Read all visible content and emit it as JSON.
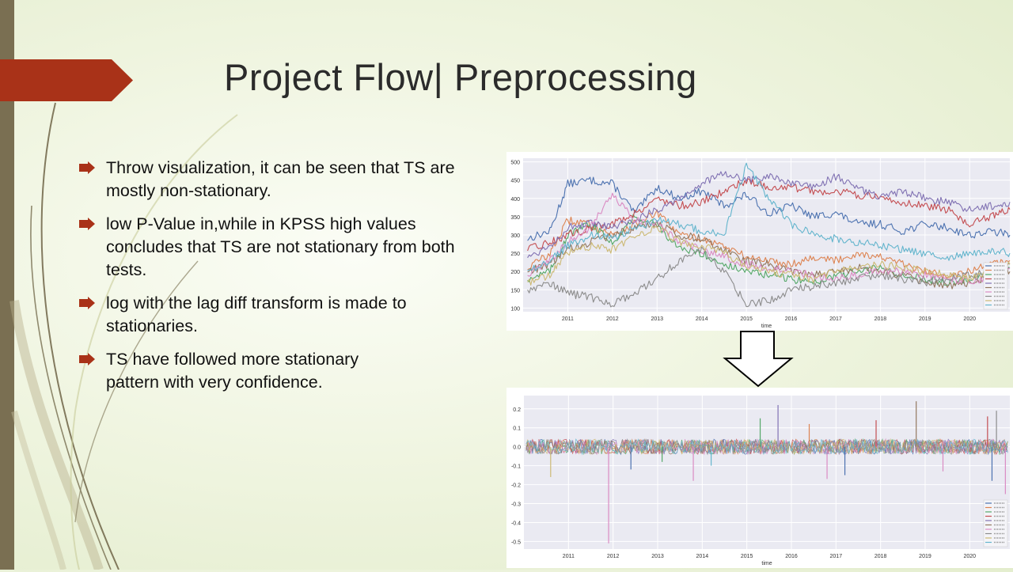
{
  "slide": {
    "title": "Project Flow| Preprocessing",
    "accent_color": "#a93218",
    "bullets": [
      {
        "lines": [
          "Throw visualization, it can be seen that TS are",
          "mostly non-stationary."
        ]
      },
      {
        "lines": [
          " low P-Value in,while in KPSS high values",
          "concludes that TS are not stationary from both",
          "tests."
        ]
      },
      {
        "lines": [
          "log with the lag diff transform is made to",
          "stationaries."
        ]
      },
      {
        "lines": [
          " TS have followed more stationary",
          "pattern  with very confidence."
        ]
      }
    ]
  },
  "chart_data": [
    {
      "type": "line",
      "xlabel": "time",
      "ylabel": "",
      "x_ticks": [
        "2011",
        "2012",
        "2013",
        "2014",
        "2015",
        "2016",
        "2017",
        "2018",
        "2019",
        "2020"
      ],
      "y_ticks": [
        100,
        150,
        200,
        250,
        300,
        350,
        400,
        450,
        500
      ],
      "xlim": [
        2010.0,
        2020.9
      ],
      "ylim": [
        90,
        510
      ],
      "grid": true,
      "legend": "bottom-right",
      "series": [
        {
          "color": "#4c72b0",
          "x": [
            2010.1,
            2010.6,
            2011.0,
            2011.5,
            2012.0,
            2012.5,
            2013.0,
            2013.5,
            2014.0,
            2014.5,
            2015.0,
            2015.5,
            2016.0,
            2016.5,
            2017.0,
            2017.5,
            2018.0,
            2018.5,
            2019.0,
            2019.5,
            2020.0,
            2020.5,
            2020.9
          ],
          "values": [
            290,
            310,
            440,
            450,
            440,
            360,
            430,
            400,
            420,
            380,
            410,
            360,
            380,
            350,
            360,
            330,
            330,
            310,
            330,
            320,
            300,
            310,
            300
          ]
        },
        {
          "color": "#dd8452",
          "x": [
            2010.1,
            2010.6,
            2011.0,
            2011.5,
            2012.0,
            2012.5,
            2013.0,
            2013.5,
            2014.0,
            2014.5,
            2015.0,
            2015.5,
            2016.0,
            2016.5,
            2017.0,
            2017.5,
            2018.0,
            2018.5,
            2019.0,
            2019.5,
            2020.0,
            2020.5,
            2020.9
          ],
          "values": [
            210,
            250,
            340,
            330,
            300,
            330,
            360,
            300,
            290,
            270,
            240,
            230,
            220,
            240,
            230,
            250,
            240,
            220,
            200,
            190,
            200,
            220,
            230
          ]
        },
        {
          "color": "#55a868",
          "x": [
            2010.1,
            2010.6,
            2011.0,
            2011.5,
            2012.0,
            2012.5,
            2013.0,
            2013.5,
            2014.0,
            2014.5,
            2015.0,
            2015.5,
            2016.0,
            2016.5,
            2017.0,
            2017.5,
            2018.0,
            2018.5,
            2019.0,
            2019.5,
            2020.0,
            2020.5,
            2020.9
          ],
          "values": [
            180,
            200,
            300,
            330,
            280,
            350,
            330,
            260,
            250,
            220,
            200,
            190,
            180,
            170,
            190,
            200,
            210,
            190,
            180,
            170,
            180,
            200,
            210
          ]
        },
        {
          "color": "#c44e52",
          "x": [
            2010.1,
            2010.6,
            2011.0,
            2011.5,
            2012.0,
            2012.5,
            2013.0,
            2013.5,
            2014.0,
            2014.5,
            2015.0,
            2015.5,
            2016.0,
            2016.5,
            2017.0,
            2017.5,
            2018.0,
            2018.5,
            2019.0,
            2019.5,
            2020.0,
            2020.5,
            2020.9
          ],
          "values": [
            260,
            280,
            300,
            320,
            330,
            360,
            400,
            380,
            390,
            420,
            450,
            430,
            430,
            420,
            420,
            410,
            400,
            390,
            380,
            370,
            330,
            350,
            370
          ]
        },
        {
          "color": "#8172b3",
          "x": [
            2010.1,
            2010.6,
            2011.0,
            2011.5,
            2012.0,
            2012.5,
            2013.0,
            2013.5,
            2014.0,
            2014.5,
            2015.0,
            2015.5,
            2016.0,
            2016.5,
            2017.0,
            2017.5,
            2018.0,
            2018.5,
            2019.0,
            2019.5,
            2020.0,
            2020.5,
            2020.9
          ],
          "values": [
            240,
            270,
            320,
            330,
            320,
            340,
            370,
            400,
            440,
            470,
            450,
            460,
            440,
            430,
            460,
            430,
            400,
            420,
            400,
            390,
            370,
            380,
            390
          ]
        },
        {
          "color": "#937860",
          "x": [
            2010.1,
            2010.6,
            2011.0,
            2011.5,
            2012.0,
            2012.5,
            2013.0,
            2013.5,
            2014.0,
            2014.5,
            2015.0,
            2015.5,
            2016.0,
            2016.5,
            2017.0,
            2017.5,
            2018.0,
            2018.5,
            2019.0,
            2019.5,
            2020.0,
            2020.5,
            2020.9
          ],
          "values": [
            200,
            220,
            260,
            280,
            300,
            320,
            330,
            300,
            290,
            260,
            230,
            220,
            200,
            190,
            200,
            210,
            200,
            190,
            170,
            160,
            170,
            190,
            200
          ]
        },
        {
          "color": "#da8bc3",
          "x": [
            2010.1,
            2010.6,
            2011.0,
            2011.5,
            2012.0,
            2012.5,
            2013.0,
            2013.5,
            2014.0,
            2014.5,
            2015.0,
            2015.5,
            2016.0,
            2016.5,
            2017.0,
            2017.5,
            2018.0,
            2018.5,
            2019.0,
            2019.5,
            2020.0,
            2020.5,
            2020.9
          ],
          "values": [
            190,
            230,
            280,
            320,
            410,
            340,
            330,
            280,
            260,
            240,
            220,
            210,
            200,
            190,
            180,
            190,
            200,
            200,
            190,
            180,
            170,
            190,
            210
          ]
        },
        {
          "color": "#8c8c8c",
          "x": [
            2010.1,
            2010.6,
            2011.0,
            2011.5,
            2012.0,
            2012.5,
            2013.0,
            2013.5,
            2014.0,
            2014.5,
            2015.0,
            2015.5,
            2016.0,
            2016.5,
            2017.0,
            2017.5,
            2018.0,
            2018.5,
            2019.0,
            2019.5,
            2020.0,
            2020.5,
            2020.9
          ],
          "values": [
            150,
            170,
            140,
            130,
            110,
            140,
            180,
            230,
            260,
            200,
            110,
            120,
            150,
            160,
            170,
            180,
            190,
            180,
            170,
            180,
            190,
            200,
            220
          ]
        },
        {
          "color": "#ccb974",
          "x": [
            2010.1,
            2010.6,
            2011.0,
            2011.5,
            2012.0,
            2012.5,
            2013.0,
            2013.5,
            2014.0,
            2014.5,
            2015.0,
            2015.5,
            2016.0,
            2016.5,
            2017.0,
            2017.5,
            2018.0,
            2018.5,
            2019.0,
            2019.5,
            2020.0,
            2020.5,
            2020.9
          ],
          "values": [
            170,
            190,
            250,
            270,
            260,
            300,
            320,
            280,
            270,
            250,
            210,
            200,
            190,
            180,
            200,
            210,
            220,
            210,
            200,
            190,
            180,
            200,
            220
          ]
        },
        {
          "color": "#64b5cd",
          "x": [
            2010.1,
            2010.6,
            2011.0,
            2011.5,
            2012.0,
            2012.5,
            2013.0,
            2013.5,
            2014.0,
            2014.5,
            2015.0,
            2015.5,
            2016.0,
            2016.5,
            2017.0,
            2017.5,
            2018.0,
            2018.5,
            2019.0,
            2019.5,
            2020.0,
            2020.5,
            2020.9
          ],
          "values": [
            200,
            230,
            270,
            300,
            290,
            320,
            340,
            330,
            310,
            300,
            490,
            400,
            330,
            300,
            290,
            280,
            270,
            260,
            250,
            240,
            250,
            260,
            250
          ]
        }
      ]
    },
    {
      "type": "line",
      "xlabel": "time",
      "ylabel": "",
      "x_ticks": [
        "2011",
        "2012",
        "2013",
        "2014",
        "2015",
        "2016",
        "2017",
        "2018",
        "2019",
        "2020"
      ],
      "y_ticks": [
        "0.2",
        "0.1",
        "0.0",
        "-0.1",
        "-0.2",
        "-0.3",
        "-0.4",
        "-0.5"
      ],
      "xlim": [
        2010.0,
        2020.9
      ],
      "ylim": [
        -0.54,
        0.27
      ],
      "grid": true,
      "legend": "bottom-right",
      "noise_band": [
        -0.04,
        0.04
      ],
      "spikes": [
        {
          "x": 2011.9,
          "value": -0.51,
          "color": "#da8bc3"
        },
        {
          "x": 2010.6,
          "value": -0.16,
          "color": "#ccb974"
        },
        {
          "x": 2012.4,
          "value": -0.12,
          "color": "#4c72b0"
        },
        {
          "x": 2013.1,
          "value": -0.08,
          "color": "#55a868"
        },
        {
          "x": 2013.8,
          "value": -0.18,
          "color": "#da8bc3"
        },
        {
          "x": 2014.2,
          "value": -0.1,
          "color": "#64b5cd"
        },
        {
          "x": 2015.3,
          "value": 0.15,
          "color": "#55a868"
        },
        {
          "x": 2015.7,
          "value": 0.22,
          "color": "#8172b3"
        },
        {
          "x": 2016.4,
          "value": 0.12,
          "color": "#dd8452"
        },
        {
          "x": 2016.8,
          "value": -0.17,
          "color": "#da8bc3"
        },
        {
          "x": 2017.2,
          "value": -0.15,
          "color": "#4c72b0"
        },
        {
          "x": 2017.9,
          "value": 0.14,
          "color": "#c44e52"
        },
        {
          "x": 2018.8,
          "value": 0.24,
          "color": "#937860"
        },
        {
          "x": 2019.4,
          "value": -0.13,
          "color": "#da8bc3"
        },
        {
          "x": 2020.4,
          "value": 0.16,
          "color": "#c44e52"
        },
        {
          "x": 2020.6,
          "value": 0.19,
          "color": "#8c8c8c"
        },
        {
          "x": 2020.5,
          "value": -0.18,
          "color": "#4c72b0"
        },
        {
          "x": 2020.8,
          "value": -0.25,
          "color": "#da8bc3"
        }
      ],
      "series": [
        {
          "color": "#4c72b0"
        },
        {
          "color": "#dd8452"
        },
        {
          "color": "#55a868"
        },
        {
          "color": "#c44e52"
        },
        {
          "color": "#8172b3"
        },
        {
          "color": "#937860"
        },
        {
          "color": "#da8bc3"
        },
        {
          "color": "#8c8c8c"
        },
        {
          "color": "#ccb974"
        },
        {
          "color": "#64b5cd"
        }
      ]
    }
  ]
}
